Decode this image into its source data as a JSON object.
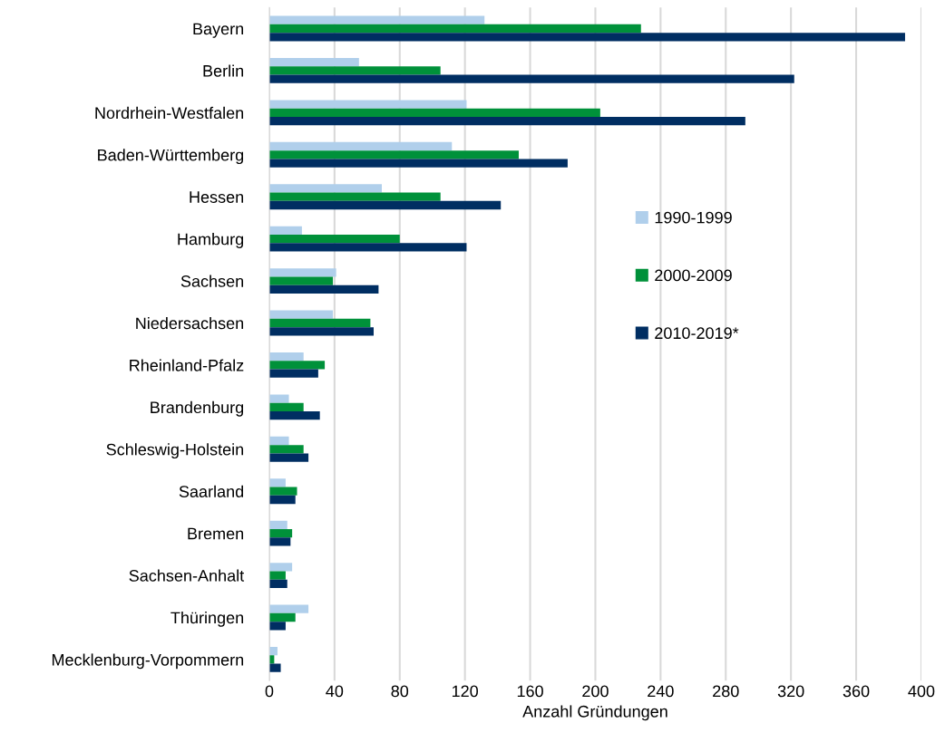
{
  "chart_data": {
    "type": "bar",
    "orientation": "horizontal",
    "xlabel": "Anzahl Gründungen",
    "categories": [
      "Bayern",
      "Berlin",
      "Nordrhein-Westfalen",
      "Baden-Württemberg",
      "Hessen",
      "Hamburg",
      "Sachsen",
      "Niedersachsen",
      "Rheinland-Pfalz",
      "Brandenburg",
      "Schleswig-Holstein",
      "Saarland",
      "Bremen",
      "Sachsen-Anhalt",
      "Thüringen",
      "Mecklenburg-Vorpommern"
    ],
    "series": [
      {
        "name": "1990-1999",
        "color": "#b0cfeb",
        "values": [
          132,
          55,
          121,
          112,
          69,
          20,
          41,
          39,
          21,
          12,
          12,
          10,
          11,
          14,
          24,
          5
        ]
      },
      {
        "name": "2000-2009",
        "color": "#00913a",
        "values": [
          228,
          105,
          203,
          153,
          105,
          80,
          39,
          62,
          34,
          21,
          21,
          17,
          14,
          10,
          16,
          3
        ]
      },
      {
        "name": "2010-2019*",
        "color": "#002e62",
        "values": [
          390,
          322,
          292,
          183,
          142,
          121,
          67,
          64,
          30,
          31,
          24,
          16,
          13,
          11,
          10,
          7
        ]
      }
    ],
    "xlim": [
      0,
      400
    ],
    "xticks": [
      0,
      40,
      80,
      120,
      160,
      200,
      240,
      280,
      320,
      360,
      400
    ],
    "grid": "x",
    "legend": "right"
  }
}
